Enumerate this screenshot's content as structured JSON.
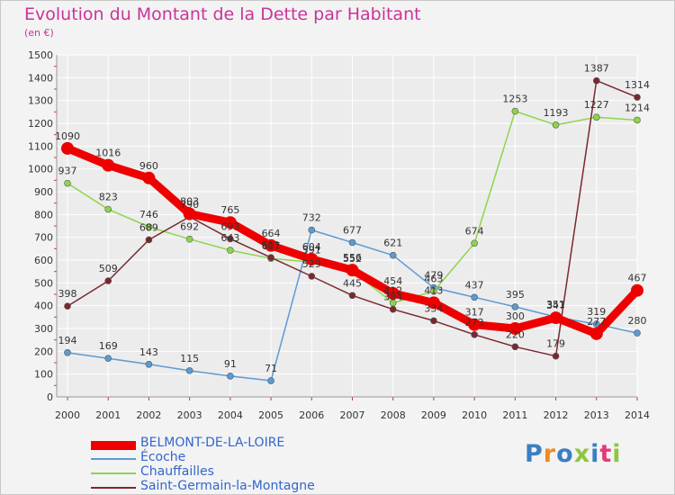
{
  "title": "Evolution du Montant de la Dette par Habitant",
  "unit": "(en €)",
  "brand": "Proxiti",
  "colors": {
    "title": "#cc3399",
    "axis_text": "#333333",
    "grid": "#ffffff",
    "legend_text": "#3366cc"
  },
  "chart_data": {
    "type": "line",
    "title": "Evolution du Montant de la Dette par Habitant",
    "ylabel": "(en €)",
    "xlabel": "",
    "x": [
      "2000",
      "2001",
      "2002",
      "2003",
      "2004",
      "2005",
      "2006",
      "2007",
      "2008",
      "2009",
      "2010",
      "2011",
      "2012",
      "2013",
      "2014"
    ],
    "ylim": [
      0,
      1500
    ],
    "yticks": [
      0,
      100,
      200,
      300,
      400,
      500,
      600,
      700,
      800,
      900,
      1000,
      1100,
      1200,
      1300,
      1400,
      1500
    ],
    "grid": true,
    "legend_position": "bottom-left",
    "series": [
      {
        "name": "BELMONT-DE-LA-LOIRE",
        "color": "#ee0000",
        "emphasis": true,
        "values": [
          1090,
          1016,
          960,
          803,
          765,
          664,
          604,
          556,
          454,
          413,
          317,
          300,
          347,
          277,
          467
        ],
        "labels": [
          "1090",
          "1016",
          "960",
          "803",
          "765",
          "664",
          "604",
          "556",
          "454",
          "413",
          "317",
          "300",
          "347",
          "277",
          "467"
        ]
      },
      {
        "name": "Écoche",
        "color": "#5b9bd5",
        "emphasis": false,
        "values": [
          194,
          169,
          143,
          115,
          91,
          71,
          732,
          677,
          621,
          479,
          437,
          395,
          351,
          319,
          280
        ],
        "labels": [
          "194",
          "169",
          "143",
          "115",
          "91",
          "71",
          "732",
          "677",
          "621",
          "479",
          "437",
          "395",
          "351",
          "319",
          "280"
        ]
      },
      {
        "name": "Chauffailles",
        "color": "#8ed44c",
        "emphasis": false,
        "values": [
          937,
          823,
          746,
          692,
          643,
          607,
          591,
          552,
          412,
          463,
          674,
          1253,
          1193,
          1227,
          1214
        ],
        "labels": [
          "937",
          "823",
          "746",
          "692",
          "643",
          "607",
          "591",
          "552",
          "412",
          "463",
          "674",
          "1253",
          "1193",
          "1227",
          "1214"
        ]
      },
      {
        "name": "Saint-Germain-la-Montagne",
        "color": "#7a2830",
        "emphasis": false,
        "values": [
          398,
          509,
          689,
          790,
          693,
          611,
          529,
          445,
          384,
          334,
          273,
          220,
          179,
          1387,
          1314
        ],
        "labels": [
          "398",
          "509",
          "689",
          "790",
          "693",
          "611",
          "529",
          "445",
          "384",
          "334",
          "273",
          "220",
          "179",
          "1387",
          "1314"
        ]
      }
    ]
  }
}
